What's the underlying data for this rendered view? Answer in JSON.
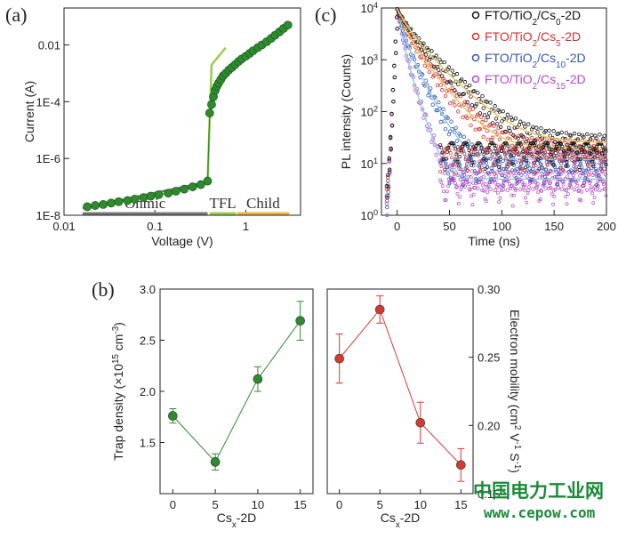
{
  "panels": {
    "a": "(a)",
    "b": "(b)",
    "c": "(c)"
  },
  "watermark": {
    "cn": "中国电力工业网",
    "en": "www.cepow.com"
  },
  "chart_data": [
    {
      "id": "a",
      "type": "line",
      "xlabel": "Voltage (V)",
      "ylabel": "Current (A)",
      "xscale": "log",
      "yscale": "log",
      "xlim": [
        0.01,
        4
      ],
      "ylim": [
        1e-08,
        0.2
      ],
      "xticks": [
        {
          "v": 0.01,
          "label": "0.01"
        },
        {
          "v": 0.1,
          "label": "0.1"
        },
        {
          "v": 1,
          "label": "1"
        }
      ],
      "yticks": [
        {
          "v": 1e-08,
          "label": "1E-8"
        },
        {
          "v": 1e-06,
          "label": "1E-6"
        },
        {
          "v": 0.0001,
          "label": "1E-4"
        },
        {
          "v": 0.01,
          "label": "0.01"
        }
      ],
      "regions": [
        {
          "label": "Ohmic",
          "x": [
            0.016,
            0.38
          ],
          "color": "#777777"
        },
        {
          "label": "TFL",
          "x": [
            0.4,
            0.78
          ],
          "color": "#9acd4a"
        },
        {
          "label": "Child",
          "x": [
            0.8,
            3.0
          ],
          "color": "#f2b33a"
        }
      ],
      "series": [
        {
          "color": "#2e8b2e",
          "x": [
            0.018,
            0.022,
            0.027,
            0.033,
            0.04,
            0.05,
            0.06,
            0.075,
            0.09,
            0.11,
            0.14,
            0.17,
            0.21,
            0.26,
            0.32,
            0.38,
            0.4,
            0.42,
            0.44,
            0.46,
            0.48,
            0.5,
            0.53,
            0.56,
            0.6,
            0.65,
            0.7,
            0.76,
            0.83,
            0.9,
            1.0,
            1.1,
            1.2,
            1.35,
            1.5,
            1.7,
            1.9,
            2.1,
            2.35,
            2.6,
            2.9
          ],
          "y": [
            2e-08,
            2.2e-08,
            2.4e-08,
            2.7e-08,
            3e-08,
            3.3e-08,
            3.7e-08,
            4.2e-08,
            4.7e-08,
            5.3e-08,
            6e-08,
            7e-08,
            8.3e-08,
            1e-07,
            1.2e-07,
            1.6e-07,
            4e-05,
            8e-05,
            0.00015,
            0.00025,
            0.00035,
            0.00045,
            0.0006,
            0.0008,
            0.001,
            0.0013,
            0.0016,
            0.002,
            0.0026,
            0.0032,
            0.004,
            0.005,
            0.0062,
            0.008,
            0.01,
            0.013,
            0.017,
            0.022,
            0.029,
            0.038,
            0.05
          ]
        }
      ],
      "fits": [
        {
          "color": "#777777",
          "x": [
            0.016,
            0.38
          ],
          "y": [
            1.8e-08,
            1.5e-07
          ]
        },
        {
          "color": "#9acd4a",
          "x": [
            0.38,
            0.42,
            0.6
          ],
          "y": [
            1.6e-07,
            0.002,
            0.008
          ]
        },
        {
          "color": "#f2b33a",
          "x": [
            0.8,
            3.0
          ],
          "y": [
            0.002,
            0.055
          ]
        }
      ]
    },
    {
      "id": "c",
      "type": "scatter",
      "xlabel": "Time (ns)",
      "ylabel": "PL intensity (Counts)",
      "yscale": "log",
      "xlim": [
        -15,
        200
      ],
      "ylim": [
        1,
        10000
      ],
      "xticks": [
        0,
        50,
        100,
        150,
        200
      ],
      "yticks": [
        {
          "v": 1,
          "base": "10",
          "exp": "0"
        },
        {
          "v": 10,
          "base": "10",
          "exp": "1"
        },
        {
          "v": 100,
          "base": "10",
          "exp": "2"
        },
        {
          "v": 1000,
          "base": "10",
          "exp": "3"
        },
        {
          "v": 10000,
          "base": "10",
          "exp": "4"
        }
      ],
      "legend": {
        "position": "top-right"
      },
      "series": [
        {
          "name_parts": [
            "FTO/TiO",
            "2",
            "/Cs",
            "0",
            "-2D"
          ],
          "color": "#111111",
          "text_color": "#111111",
          "fit": "#e8c86a",
          "peak": 9500,
          "tau1": 8,
          "tau2": 22,
          "a1": 0.5,
          "bg": 25
        },
        {
          "name_parts": [
            "FTO/TiO",
            "2",
            "/Cs",
            "5",
            "-2D"
          ],
          "color": "#d6302a",
          "text_color": "#d6302a",
          "fit": "#e8c86a",
          "peak": 9500,
          "tau1": 6,
          "tau2": 17,
          "a1": 0.55,
          "bg": 20
        },
        {
          "name_parts": [
            "FTO/TiO",
            "2",
            "/Cs",
            "10",
            "-2D"
          ],
          "color": "#3454b4",
          "text_color": "#3454b4",
          "fit": "#9ad0e8",
          "peak": 9500,
          "tau1": 4,
          "tau2": 11,
          "a1": 0.6,
          "bg": 12
        },
        {
          "name_parts": [
            "FTO/TiO",
            "2",
            "/Cs",
            "15",
            "-2D"
          ],
          "color": "#b04cc4",
          "text_color": "#b04cc4",
          "fit": "#9ad0e8",
          "peak": 9500,
          "tau1": 3,
          "tau2": 7,
          "a1": 0.65,
          "bg": 5
        }
      ]
    },
    {
      "id": "b-left",
      "type": "scatter",
      "xlabel_parts": [
        "Cs",
        "x",
        "-2D"
      ],
      "ylabel_parts": [
        "Trap density (×10",
        "15",
        " cm",
        "-3",
        ")"
      ],
      "xlim": [
        -1.5,
        16.5
      ],
      "ylim": [
        1.0,
        3.0
      ],
      "xticks": [
        0,
        5,
        10,
        15
      ],
      "yticks": [
        {
          "v": 1.5,
          "label": "1.5"
        },
        {
          "v": 2.0,
          "label": "2.0"
        },
        {
          "v": 2.5,
          "label": "2.5"
        },
        {
          "v": 3.0,
          "label": "3.0"
        }
      ],
      "series": [
        {
          "color": "#2e8b2e",
          "x": [
            0,
            5,
            10,
            15
          ],
          "y": [
            1.76,
            1.31,
            2.12,
            2.69
          ],
          "err": [
            0.07,
            0.08,
            0.12,
            0.19
          ]
        }
      ]
    },
    {
      "id": "b-right",
      "type": "scatter",
      "xlabel_parts": [
        "Cs",
        "x",
        "-2D"
      ],
      "ylabel_parts": [
        "Electron mobility (cm",
        "2",
        " V",
        "-1",
        " S",
        "-1",
        ")"
      ],
      "xlim": [
        -1.5,
        16.5
      ],
      "ylim": [
        0.15,
        0.3
      ],
      "xticks": [
        0,
        5,
        10,
        15
      ],
      "yticks": [
        {
          "v": 0.15,
          "label": "0.15"
        },
        {
          "v": 0.2,
          "label": "0.20"
        },
        {
          "v": 0.25,
          "label": "0.25"
        },
        {
          "v": 0.3,
          "label": "0.30"
        }
      ],
      "series": [
        {
          "color": "#d43a30",
          "x": [
            0,
            5,
            10,
            15
          ],
          "y": [
            0.249,
            0.285,
            0.202,
            0.171
          ],
          "err": [
            0.018,
            0.01,
            0.015,
            0.012
          ]
        }
      ]
    }
  ]
}
